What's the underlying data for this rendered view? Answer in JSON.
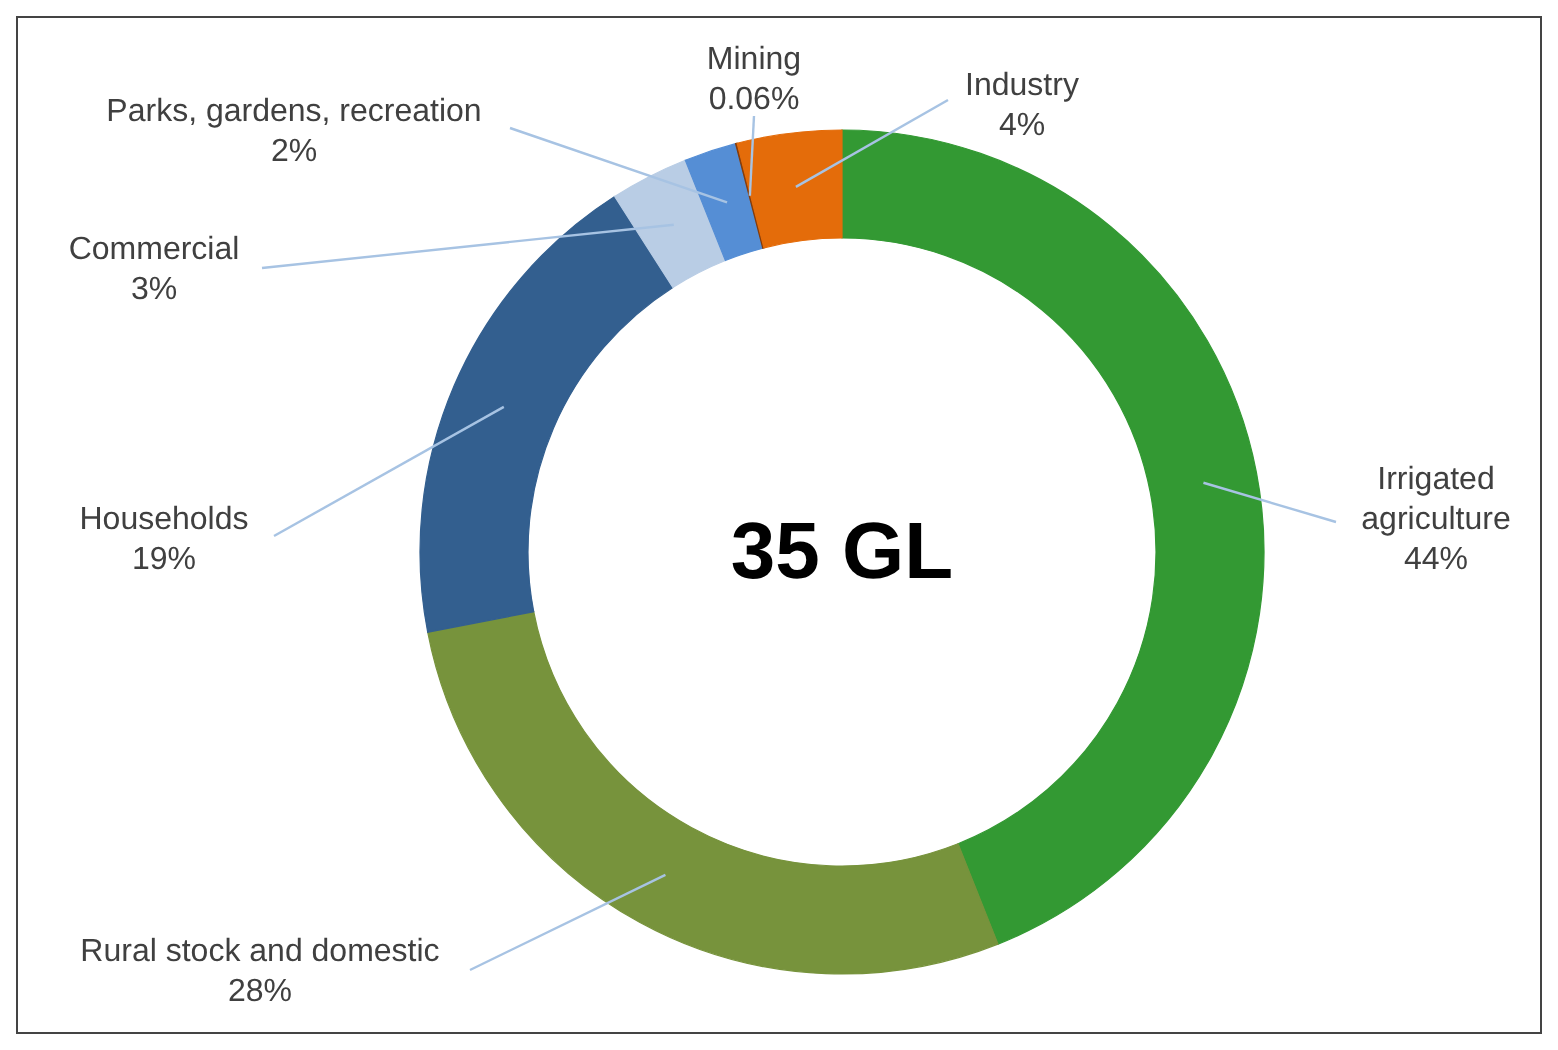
{
  "chart_data": {
    "type": "donut",
    "categories": [
      "Irrigated agriculture",
      "Rural stock and domestic",
      "Households",
      "Commercial",
      "Parks, gardens, recreation",
      "Mining",
      "Industry"
    ],
    "values": [
      44,
      28,
      19,
      3,
      2,
      0.06,
      4
    ],
    "colors": [
      "#339933",
      "#77933c",
      "#335f8f",
      "#b9cde5",
      "#558ed5",
      "#843c0c",
      "#e46c0a"
    ],
    "value_labels": [
      "44%",
      "28%",
      "19%",
      "3%",
      "2%",
      "0.06%",
      "4%"
    ],
    "annotations": [
      "35 GL"
    ]
  }
}
